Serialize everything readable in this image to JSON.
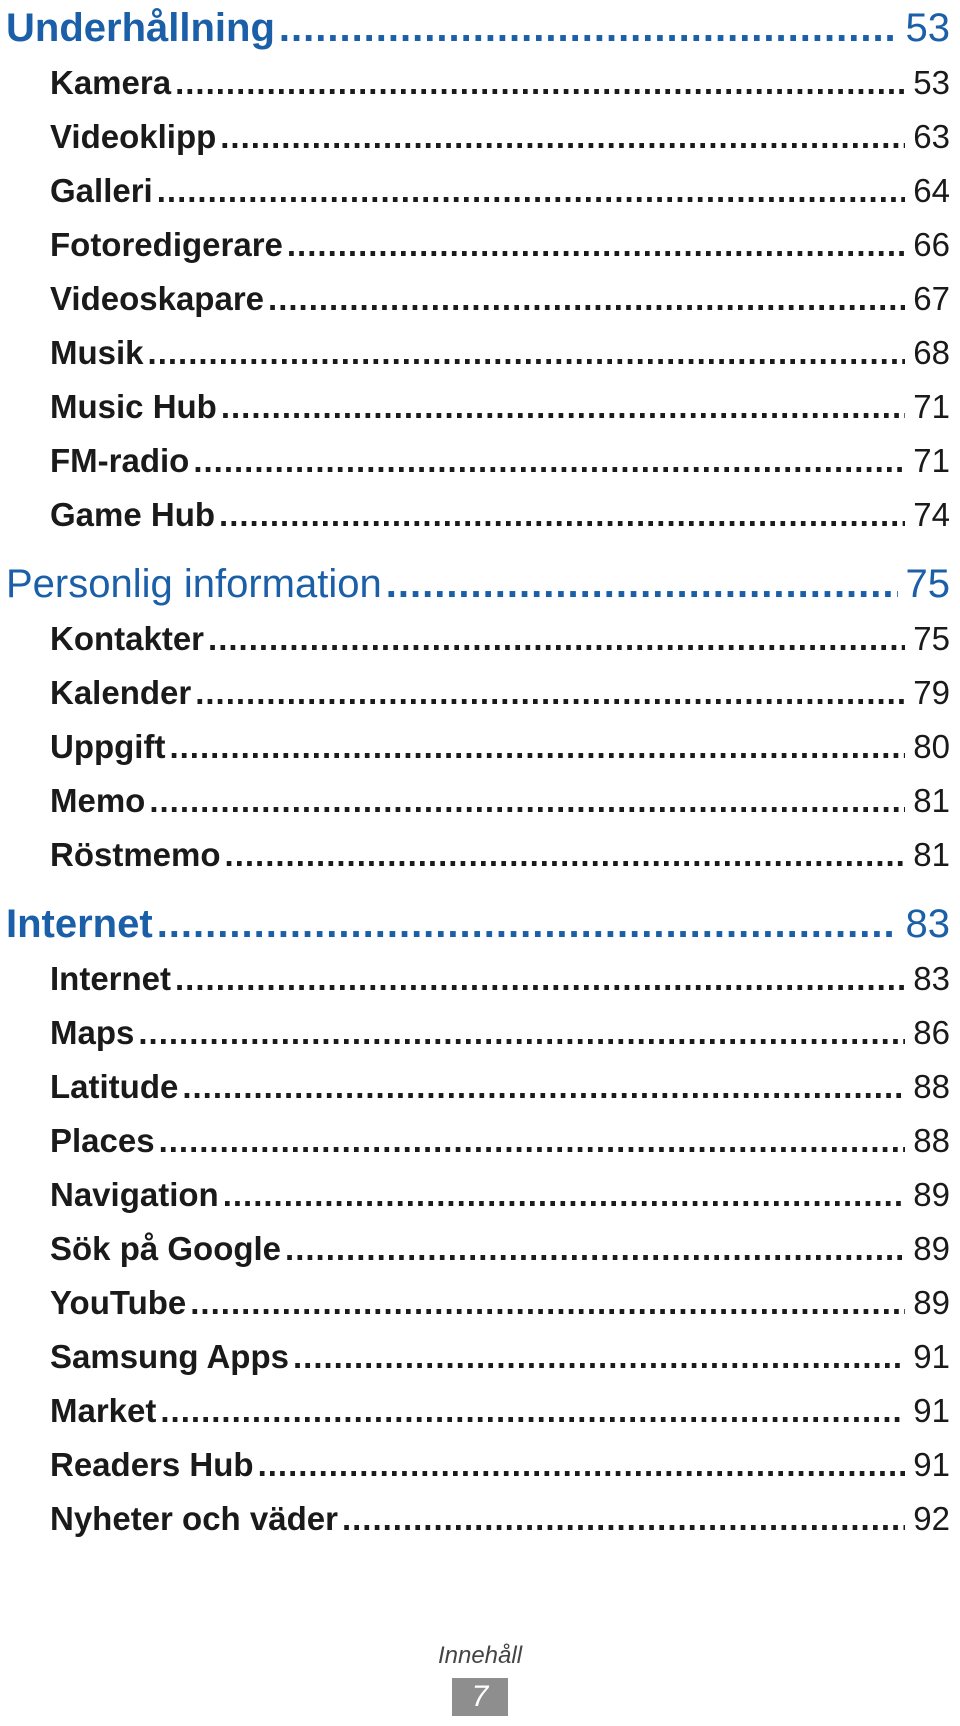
{
  "toc": {
    "sections": [
      {
        "title": "Underhållning",
        "page": "53",
        "bold": true,
        "items": [
          {
            "label": "Kamera",
            "page": "53"
          },
          {
            "label": "Videoklipp",
            "page": "63"
          },
          {
            "label": "Galleri",
            "page": "64"
          },
          {
            "label": "Fotoredigerare",
            "page": "66"
          },
          {
            "label": "Videoskapare",
            "page": "67"
          },
          {
            "label": "Musik",
            "page": "68"
          },
          {
            "label": "Music Hub",
            "page": "71"
          },
          {
            "label": "FM-radio",
            "page": "71"
          },
          {
            "label": "Game Hub",
            "page": "74"
          }
        ]
      },
      {
        "title": "Personlig information",
        "page": "75",
        "bold": false,
        "items": [
          {
            "label": "Kontakter",
            "page": "75"
          },
          {
            "label": "Kalender",
            "page": "79"
          },
          {
            "label": "Uppgift",
            "page": "80"
          },
          {
            "label": "Memo",
            "page": "81"
          },
          {
            "label": "Röstmemo",
            "page": "81"
          }
        ]
      },
      {
        "title": "Internet",
        "page": "83",
        "bold": true,
        "items": [
          {
            "label": "Internet",
            "page": "83"
          },
          {
            "label": "Maps",
            "page": "86"
          },
          {
            "label": "Latitude",
            "page": "88"
          },
          {
            "label": "Places",
            "page": "88"
          },
          {
            "label": "Navigation",
            "page": "89"
          },
          {
            "label": "Sök på Google",
            "page": "89"
          },
          {
            "label": "YouTube",
            "page": "89"
          },
          {
            "label": "Samsung Apps",
            "page": "91"
          },
          {
            "label": "Market",
            "page": "91"
          },
          {
            "label": "Readers Hub",
            "page": "91"
          },
          {
            "label": "Nyheter och väder",
            "page": "92"
          }
        ]
      }
    ]
  },
  "footer": {
    "label": "Innehåll",
    "page_number": "7"
  },
  "colors": {
    "heading": "#1a5fa8",
    "text": "#1a1a1a",
    "page_badge": "#8e8e8e"
  }
}
